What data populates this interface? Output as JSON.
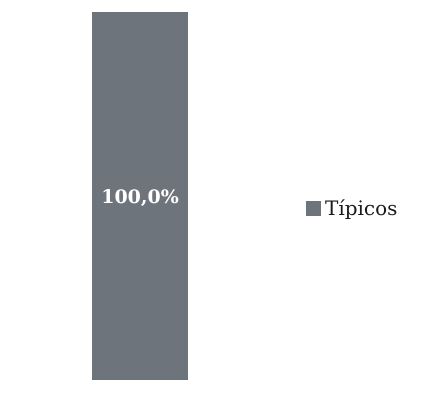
{
  "chart_data": {
    "type": "bar",
    "stacked": true,
    "categories": [
      ""
    ],
    "series": [
      {
        "name": "Típicos",
        "values": [
          100.0
        ],
        "label": "100,0%",
        "color": "#6d747b"
      }
    ],
    "ylim": [
      0,
      100
    ],
    "grid": false,
    "legend": "right"
  }
}
